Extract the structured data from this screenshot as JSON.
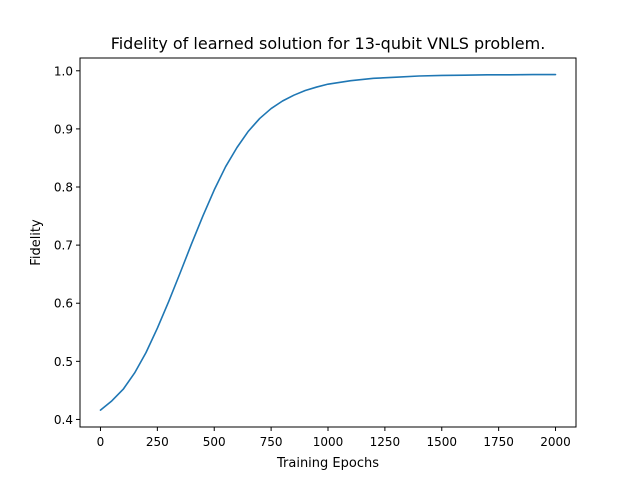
{
  "chart_data": {
    "type": "line",
    "title": "Fidelity of learned solution for 13-qubit VNLS problem.",
    "xlabel": "Training Epochs",
    "ylabel": "Fidelity",
    "xlim": [
      -90,
      2090
    ],
    "ylim": [
      0.387,
      1.022
    ],
    "xticks": [
      0,
      250,
      500,
      750,
      1000,
      1250,
      1500,
      1750,
      2000
    ],
    "yticks": [
      0.4,
      0.5,
      0.6,
      0.7,
      0.8,
      0.9,
      1.0
    ],
    "ytick_labels": [
      "0.4",
      "0.5",
      "0.6",
      "0.7",
      "0.8",
      "0.9",
      "1.0"
    ],
    "grid": false,
    "series": [
      {
        "color": "#1f77b4",
        "x": [
          0,
          50,
          100,
          150,
          200,
          250,
          300,
          350,
          400,
          450,
          500,
          550,
          600,
          650,
          700,
          750,
          800,
          850,
          900,
          950,
          1000,
          1100,
          1200,
          1300,
          1400,
          1500,
          1600,
          1700,
          1800,
          1900,
          2000
        ],
        "y": [
          0.416,
          0.432,
          0.452,
          0.48,
          0.515,
          0.557,
          0.603,
          0.652,
          0.702,
          0.75,
          0.795,
          0.835,
          0.868,
          0.896,
          0.918,
          0.935,
          0.948,
          0.958,
          0.966,
          0.972,
          0.977,
          0.983,
          0.987,
          0.989,
          0.991,
          0.992,
          0.9925,
          0.993,
          0.993,
          0.9935,
          0.9935
        ]
      }
    ]
  }
}
